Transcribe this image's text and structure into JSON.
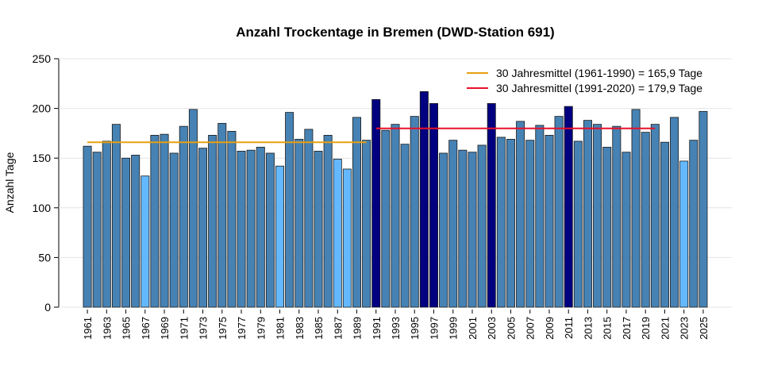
{
  "chart_data": {
    "type": "bar",
    "title": "Anzahl Trockentage in Bremen (DWD-Station 691)",
    "y_label": "Anzahl Tage",
    "categories": [
      "1961",
      null,
      "1963",
      null,
      "1965",
      null,
      "1967",
      null,
      "1969",
      null,
      "1971",
      null,
      "1973",
      null,
      "1975",
      null,
      "1977",
      null,
      "1979",
      null,
      "1981",
      null,
      "1983",
      null,
      "1985",
      null,
      "1987",
      null,
      "1989",
      null,
      "1991",
      null,
      "1993",
      null,
      "1995",
      null,
      "1997",
      null,
      "1999",
      null,
      "2001",
      null,
      "2003",
      null,
      "2005",
      null,
      "2007",
      null,
      "2009",
      null,
      "2011",
      null,
      "2013",
      null,
      "2015",
      null,
      "2017",
      null,
      "2019",
      null,
      "2021",
      null,
      "2023",
      null,
      "2025"
    ],
    "values": [
      162,
      156,
      167,
      184,
      150,
      153,
      132,
      173,
      174,
      155,
      182,
      199,
      160,
      173,
      185,
      177,
      157,
      158,
      161,
      155,
      142,
      196,
      169,
      179,
      157,
      173,
      149,
      139,
      191,
      168,
      209,
      178,
      184,
      164,
      192,
      217,
      205,
      155,
      168,
      158,
      156,
      163,
      205,
      171,
      169,
      187,
      168,
      183,
      173,
      192,
      202,
      167,
      188,
      184,
      161,
      182,
      156,
      199,
      176,
      184,
      166,
      191,
      147,
      168,
      197
    ],
    "colors": [
      "#4682b4",
      "#4682b4",
      "#4682b4",
      "#4682b4",
      "#4682b4",
      "#4682b4",
      "#63b8ff",
      "#4682b4",
      "#4682b4",
      "#4682b4",
      "#4682b4",
      "#4682b4",
      "#4682b4",
      "#4682b4",
      "#4682b4",
      "#4682b4",
      "#4682b4",
      "#4682b4",
      "#4682b4",
      "#4682b4",
      "#63b8ff",
      "#4682b4",
      "#4682b4",
      "#4682b4",
      "#4682b4",
      "#4682b4",
      "#63b8ff",
      "#63b8ff",
      "#4682b4",
      "#4682b4",
      "#000080",
      "#4682b4",
      "#4682b4",
      "#4682b4",
      "#4682b4",
      "#000080",
      "#000080",
      "#4682b4",
      "#4682b4",
      "#4682b4",
      "#4682b4",
      "#4682b4",
      "#000080",
      "#4682b4",
      "#4682b4",
      "#4682b4",
      "#4682b4",
      "#4682b4",
      "#4682b4",
      "#4682b4",
      "#000080",
      "#4682b4",
      "#4682b4",
      "#4682b4",
      "#4682b4",
      "#4682b4",
      "#4682b4",
      "#4682b4",
      "#4682b4",
      "#4682b4",
      "#4682b4",
      "#4682b4",
      "#63b8ff",
      "#4682b4",
      "#4682b4"
    ],
    "reference_lines": [
      {
        "label": "30 Jahresmittel (1961-1990) = 165,9 Tage",
        "value": 165.9,
        "color": "#e6a010",
        "x_from": 1961,
        "x_to": 1990
      },
      {
        "label": "30 Jahresmittel (1991-2020) = 179,9 Tage",
        "value": 179.9,
        "color": "#e8102a",
        "x_from": 1991,
        "x_to": 2020
      }
    ],
    "legend": "top-right",
    "ylim": [
      0,
      250
    ],
    "yticks": [
      0,
      50,
      100,
      150,
      200,
      250
    ],
    "grid": true
  }
}
